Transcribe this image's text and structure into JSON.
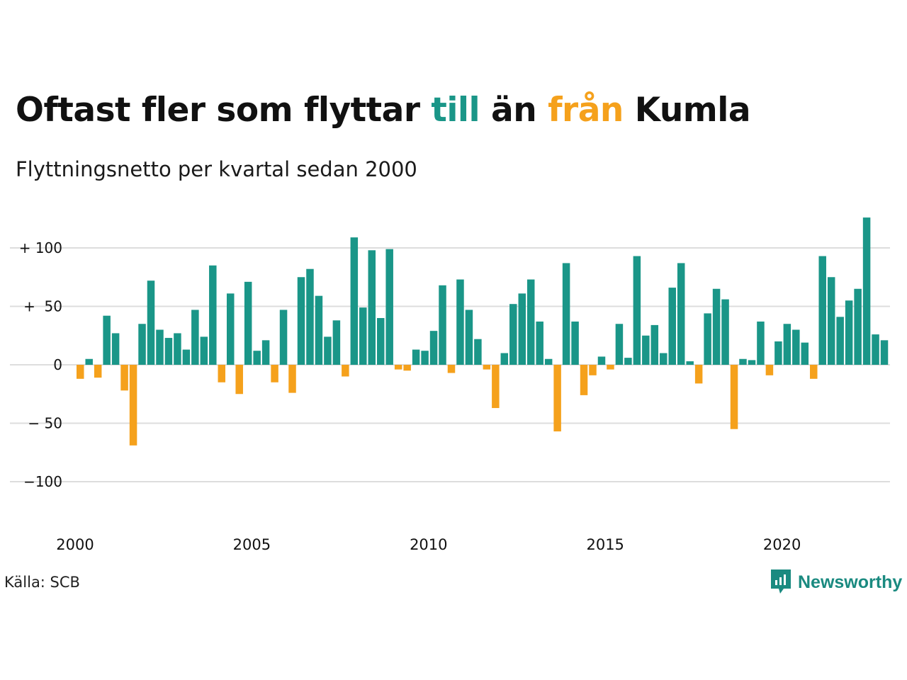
{
  "title": {
    "part1": "Oftast fler som flyttar ",
    "highlight_positive": "till",
    "part2": " än ",
    "highlight_negative": "från",
    "part3": " Kumla"
  },
  "subtitle": "Flyttningsnetto per kvartal sedan 2000",
  "source": "Källa: SCB",
  "brand": {
    "name": "Newsworthy",
    "icon": "newsworthy-logo-icon"
  },
  "colors": {
    "positive": "#1a9688",
    "negative": "#f5a11c",
    "grid": "#dddddd",
    "text": "#111111",
    "brand": "#1a8a80"
  },
  "chart_data": {
    "type": "bar",
    "start_year": 2000,
    "periods_per_year": 4,
    "ylim": [
      -130,
      130
    ],
    "grid": true,
    "y_ticks": [
      {
        "value": 100,
        "label": "+ 100"
      },
      {
        "value": 50,
        "label": "+  50"
      },
      {
        "value": 0,
        "label": "0"
      },
      {
        "value": -50,
        "label": "− 50"
      },
      {
        "value": -100,
        "label": "−100"
      }
    ],
    "x_ticks": [
      "2000",
      "2005",
      "2010",
      "2015",
      "2020"
    ],
    "values": [
      -12,
      5,
      -11,
      42,
      27,
      -22,
      -69,
      35,
      72,
      30,
      23,
      27,
      13,
      47,
      24,
      85,
      -15,
      61,
      -25,
      71,
      12,
      21,
      -15,
      47,
      -24,
      75,
      82,
      59,
      24,
      38,
      -10,
      109,
      49,
      98,
      40,
      99,
      -4,
      -5,
      13,
      12,
      29,
      68,
      -7,
      73,
      47,
      22,
      -4,
      -37,
      10,
      52,
      61,
      73,
      37,
      5,
      -57,
      87,
      37,
      -26,
      -9,
      7,
      -4,
      35,
      6,
      93,
      25,
      34,
      10,
      66,
      87,
      3,
      -16,
      44,
      65,
      56,
      -55,
      5,
      4,
      37,
      -9,
      20,
      35,
      30,
      19,
      -12,
      93,
      75,
      41,
      55,
      65,
      126,
      26,
      21
    ]
  }
}
